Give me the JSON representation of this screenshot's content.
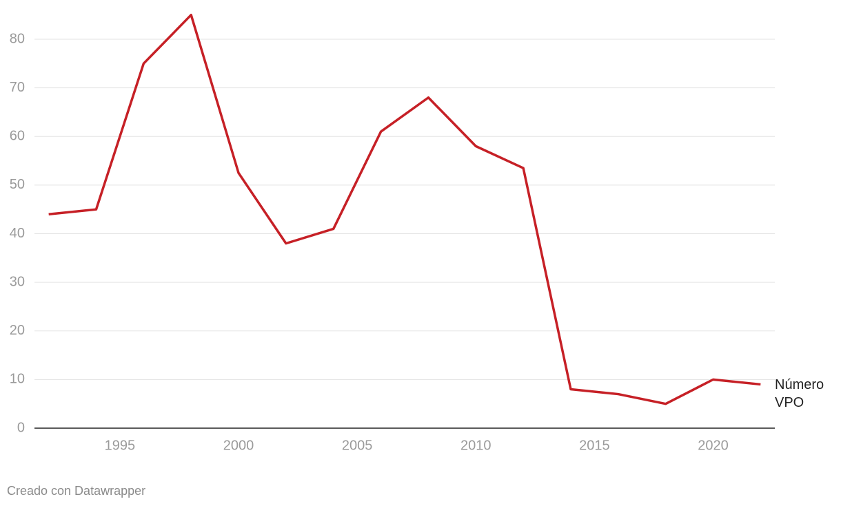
{
  "chart_data": {
    "type": "line",
    "x": [
      1992,
      1994,
      1996,
      1998,
      2000,
      2002,
      2004,
      2006,
      2008,
      2010,
      2012,
      2014,
      2016,
      2018,
      2020,
      2022
    ],
    "series": [
      {
        "name": "Número VPO",
        "color": "#c62026",
        "values": [
          44,
          45,
          75,
          85,
          52.5,
          38,
          41,
          61,
          68,
          58,
          53.5,
          8,
          7,
          5,
          10,
          9
        ]
      }
    ],
    "xlim": [
      1991.4,
      2022.6
    ],
    "xticks": [
      1995,
      2000,
      2005,
      2010,
      2015,
      2020
    ],
    "ylim": [
      0,
      85
    ],
    "yticks": [
      0,
      10,
      20,
      30,
      40,
      50,
      60,
      70,
      80
    ],
    "grid": true,
    "footer": "Creado con Datawrapper"
  }
}
